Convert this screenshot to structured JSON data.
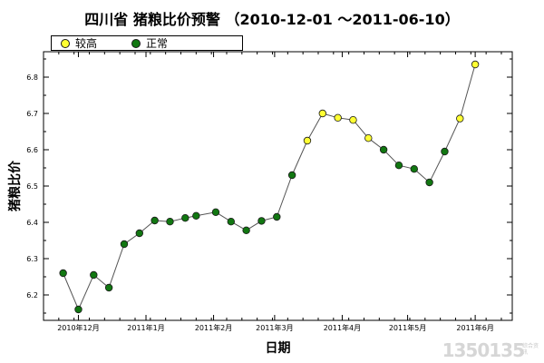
{
  "chart_data": {
    "type": "line",
    "title": "四川省 猪粮比价预警 （2010-12-01 ～2011-06-10）",
    "xlabel": "日期",
    "ylabel": "猪粮比价",
    "ylim": [
      6.13,
      6.87
    ],
    "y_ticks": [
      "6.2",
      "6.3",
      "6.4",
      "6.5",
      "6.6",
      "6.7",
      "6.8"
    ],
    "x_ticks": [
      {
        "date": "2010-12-01",
        "label": "2010年12月"
      },
      {
        "date": "2011-01-01",
        "label": "2011年1月"
      },
      {
        "date": "2011-02-01",
        "label": "2011年2月"
      },
      {
        "date": "2011-03-01",
        "label": "2011年3月"
      },
      {
        "date": "2011-04-01",
        "label": "2011年4月"
      },
      {
        "date": "2011-05-01",
        "label": "2011年5月"
      },
      {
        "date": "2011-06-01",
        "label": "2011年6月"
      }
    ],
    "x_range": [
      "2010-11-15",
      "2011-06-18"
    ],
    "legend_position": "top-left",
    "series": [
      {
        "name": "较高",
        "color": "#ffff33"
      },
      {
        "name": "正常",
        "color": "#117711"
      }
    ],
    "points": [
      {
        "date": "2010-11-24",
        "value": 6.26,
        "level": "正常"
      },
      {
        "date": "2010-12-01",
        "value": 6.16,
        "level": "正常"
      },
      {
        "date": "2010-12-08",
        "value": 6.255,
        "level": "正常"
      },
      {
        "date": "2010-12-15",
        "value": 6.22,
        "level": "正常"
      },
      {
        "date": "2010-12-22",
        "value": 6.34,
        "level": "正常"
      },
      {
        "date": "2010-12-29",
        "value": 6.37,
        "level": "正常"
      },
      {
        "date": "2011-01-05",
        "value": 6.405,
        "level": "正常"
      },
      {
        "date": "2011-01-12",
        "value": 6.402,
        "level": "正常"
      },
      {
        "date": "2011-01-19",
        "value": 6.412,
        "level": "正常"
      },
      {
        "date": "2011-01-24",
        "value": 6.418,
        "level": "正常"
      },
      {
        "date": "2011-02-02",
        "value": 6.428,
        "level": "正常"
      },
      {
        "date": "2011-02-09",
        "value": 6.402,
        "level": "正常"
      },
      {
        "date": "2011-02-16",
        "value": 6.378,
        "level": "正常"
      },
      {
        "date": "2011-02-23",
        "value": 6.404,
        "level": "正常"
      },
      {
        "date": "2011-03-02",
        "value": 6.415,
        "level": "正常"
      },
      {
        "date": "2011-03-09",
        "value": 6.53,
        "level": "正常"
      },
      {
        "date": "2011-03-16",
        "value": 6.625,
        "level": "较高"
      },
      {
        "date": "2011-03-23",
        "value": 6.7,
        "level": "较高"
      },
      {
        "date": "2011-03-30",
        "value": 6.688,
        "level": "较高"
      },
      {
        "date": "2011-04-06",
        "value": 6.682,
        "level": "较高"
      },
      {
        "date": "2011-04-13",
        "value": 6.632,
        "level": "较高"
      },
      {
        "date": "2011-04-20",
        "value": 6.6,
        "level": "正常"
      },
      {
        "date": "2011-04-27",
        "value": 6.557,
        "level": "正常"
      },
      {
        "date": "2011-05-04",
        "value": 6.547,
        "level": "正常"
      },
      {
        "date": "2011-05-11",
        "value": 6.51,
        "level": "正常"
      },
      {
        "date": "2011-05-18",
        "value": 6.595,
        "level": "正常"
      },
      {
        "date": "2011-05-25",
        "value": 6.686,
        "level": "较高"
      },
      {
        "date": "2011-06-01",
        "value": 6.835,
        "level": "较高"
      }
    ]
  },
  "legend": {
    "high_label": "较高",
    "normal_label": "正常"
  },
  "watermark": {
    "text": "1350135",
    "sub": "综合资讯"
  }
}
